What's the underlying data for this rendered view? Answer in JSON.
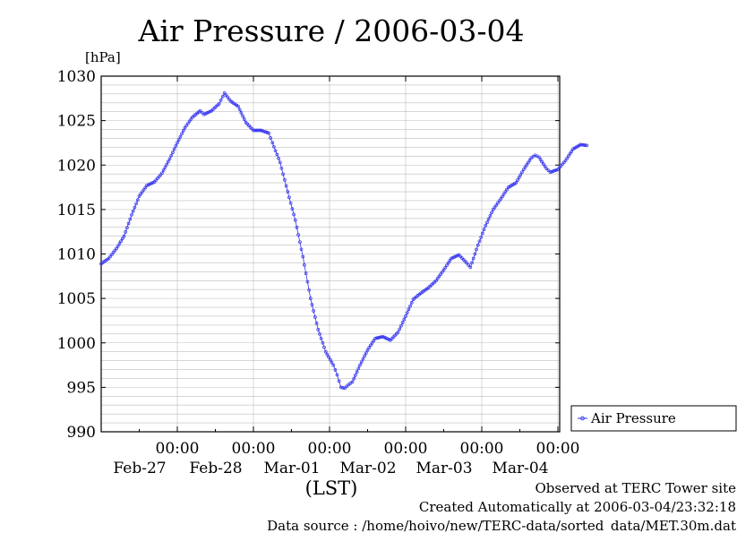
{
  "chart_data": {
    "type": "line",
    "title": "Air Pressure / 2006-03-04",
    "ylabel": "[hPa]",
    "xlabel": "(LST)",
    "ylim": [
      990,
      1030
    ],
    "yticks": [
      "1030",
      "1025",
      "1020",
      "1015",
      "1010",
      "1005",
      "1000",
      "995",
      "990"
    ],
    "xticks": [
      {
        "time": "00:00",
        "date": "Feb-27"
      },
      {
        "time": "00:00",
        "date": "Feb-28"
      },
      {
        "time": "00:00",
        "date": "Mar-01"
      },
      {
        "time": "00:00",
        "date": "Mar-02"
      },
      {
        "time": "00:00",
        "date": "Mar-03"
      },
      {
        "time": "00:00",
        "date": "Mar-04"
      }
    ],
    "grid": true,
    "legend_position": "right",
    "series": [
      {
        "name": "Air Pressure",
        "color": "#3333ee",
        "points": [
          [
            -1.0,
            1008.9
          ],
          [
            -0.9,
            1009.5
          ],
          [
            -0.8,
            1010.6
          ],
          [
            -0.7,
            1012.0
          ],
          [
            -0.6,
            1014.4
          ],
          [
            -0.5,
            1016.5
          ],
          [
            -0.4,
            1017.7
          ],
          [
            -0.3,
            1018.1
          ],
          [
            -0.2,
            1019.1
          ],
          [
            -0.1,
            1020.7
          ],
          [
            0.0,
            1022.5
          ],
          [
            0.1,
            1024.2
          ],
          [
            0.2,
            1025.4
          ],
          [
            0.3,
            1026.1
          ],
          [
            0.35,
            1025.7
          ],
          [
            0.45,
            1026.1
          ],
          [
            0.55,
            1026.9
          ],
          [
            0.62,
            1028.1
          ],
          [
            0.7,
            1027.2
          ],
          [
            0.8,
            1026.6
          ],
          [
            0.9,
            1024.8
          ],
          [
            1.0,
            1023.9
          ],
          [
            1.1,
            1023.9
          ],
          [
            1.2,
            1023.6
          ],
          [
            1.25,
            1022.5
          ],
          [
            1.35,
            1020.3
          ],
          [
            1.45,
            1017.0
          ],
          [
            1.55,
            1013.8
          ],
          [
            1.65,
            1009.7
          ],
          [
            1.75,
            1005.0
          ],
          [
            1.85,
            1001.5
          ],
          [
            1.95,
            999.0
          ],
          [
            2.05,
            997.5
          ],
          [
            2.1,
            996.4
          ],
          [
            2.15,
            995.0
          ],
          [
            2.2,
            994.9
          ],
          [
            2.25,
            995.3
          ],
          [
            2.3,
            995.6
          ],
          [
            2.4,
            997.5
          ],
          [
            2.5,
            999.2
          ],
          [
            2.6,
            1000.5
          ],
          [
            2.7,
            1000.7
          ],
          [
            2.8,
            1000.3
          ],
          [
            2.9,
            1001.2
          ],
          [
            3.0,
            1003.0
          ],
          [
            3.1,
            1004.9
          ],
          [
            3.2,
            1005.6
          ],
          [
            3.3,
            1006.2
          ],
          [
            3.4,
            1007.0
          ],
          [
            3.5,
            1008.2
          ],
          [
            3.6,
            1009.5
          ],
          [
            3.7,
            1009.9
          ],
          [
            3.8,
            1009.0
          ],
          [
            3.85,
            1008.5
          ],
          [
            3.95,
            1011.0
          ],
          [
            4.05,
            1013.2
          ],
          [
            4.15,
            1015.0
          ],
          [
            4.25,
            1016.2
          ],
          [
            4.35,
            1017.5
          ],
          [
            4.45,
            1018.0
          ],
          [
            4.55,
            1019.5
          ],
          [
            4.65,
            1020.8
          ],
          [
            4.7,
            1021.1
          ],
          [
            4.75,
            1020.9
          ],
          [
            4.85,
            1019.6
          ],
          [
            4.9,
            1019.2
          ],
          [
            5.0,
            1019.5
          ],
          [
            5.1,
            1020.5
          ],
          [
            5.2,
            1021.8
          ],
          [
            5.3,
            1022.3
          ],
          [
            5.38,
            1022.2
          ]
        ]
      }
    ],
    "annotations": [
      "Observed at TERC Tower site",
      "Created Automatically at 2006-03-04/23:32:18",
      "Data source : /home/hoivo/new/TERC-data/sorted_data/MET.30m.dat"
    ]
  }
}
